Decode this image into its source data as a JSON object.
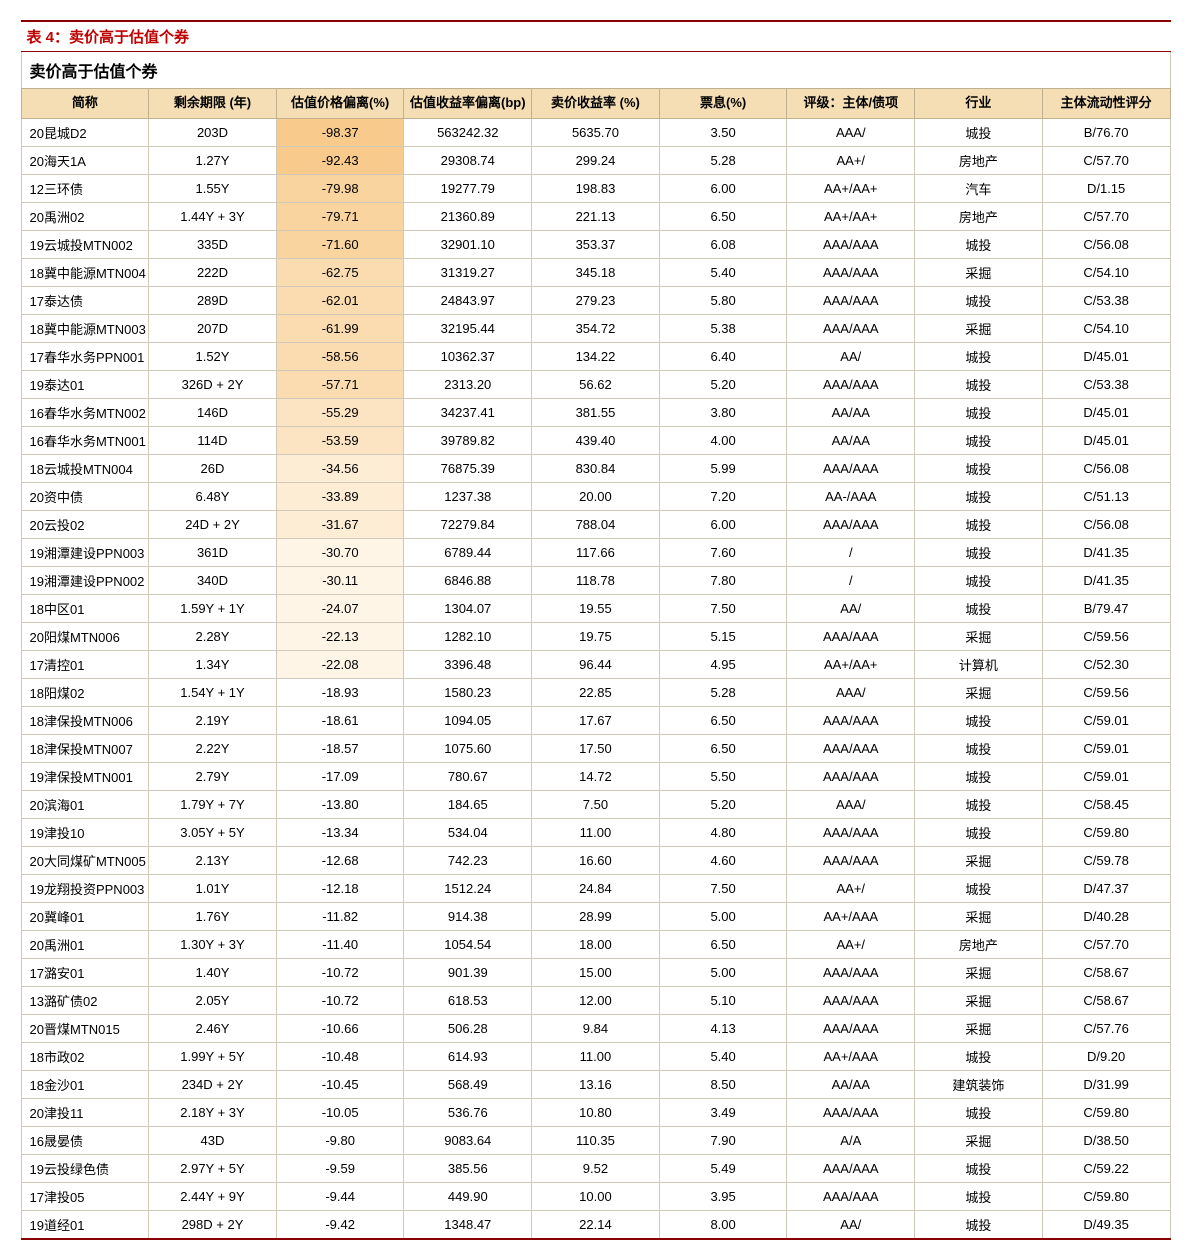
{
  "title": "表 4：卖价高于估值个券",
  "mergedHeader": "卖价高于估值个券",
  "columns": [
    "简称",
    "剩余期限 (年)",
    "估值价格偏离(%)",
    "估值收益率偏离(bp)",
    "卖价收益率 (%)",
    "票息(%)",
    "评级：主体/债项",
    "行业",
    "主体流动性评分"
  ],
  "heatmap": {
    "colors": [
      "#f8cb8c",
      "#fad49e",
      "#fbdcb0",
      "#fce4c2",
      "#fdedd4",
      "#fef5e6",
      "#ffffff"
    ],
    "column_index": 2
  },
  "rows": [
    {
      "name": "20昆城D2",
      "term": "203D",
      "dev": "-98.37",
      "devShade": 0,
      "yieldDev": "563242.32",
      "sellYield": "5635.70",
      "coupon": "3.50",
      "rating": "AAA/",
      "industry": "城投",
      "liquidity": "B/76.70"
    },
    {
      "name": "20海天1A",
      "term": "1.27Y",
      "dev": "-92.43",
      "devShade": 0,
      "yieldDev": "29308.74",
      "sellYield": "299.24",
      "coupon": "5.28",
      "rating": "AA+/",
      "industry": "房地产",
      "liquidity": "C/57.70"
    },
    {
      "name": "12三环债",
      "term": "1.55Y",
      "dev": "-79.98",
      "devShade": 1,
      "yieldDev": "19277.79",
      "sellYield": "198.83",
      "coupon": "6.00",
      "rating": "AA+/AA+",
      "industry": "汽车",
      "liquidity": "D/1.15"
    },
    {
      "name": "20禹洲02",
      "term": "1.44Y + 3Y",
      "dev": "-79.71",
      "devShade": 1,
      "yieldDev": "21360.89",
      "sellYield": "221.13",
      "coupon": "6.50",
      "rating": "AA+/AA+",
      "industry": "房地产",
      "liquidity": "C/57.70"
    },
    {
      "name": "19云城投MTN002",
      "term": "335D",
      "dev": "-71.60",
      "devShade": 1,
      "yieldDev": "32901.10",
      "sellYield": "353.37",
      "coupon": "6.08",
      "rating": "AAA/AAA",
      "industry": "城投",
      "liquidity": "C/56.08"
    },
    {
      "name": "18冀中能源MTN004",
      "term": "222D",
      "dev": "-62.75",
      "devShade": 2,
      "yieldDev": "31319.27",
      "sellYield": "345.18",
      "coupon": "5.40",
      "rating": "AAA/AAA",
      "industry": "采掘",
      "liquidity": "C/54.10"
    },
    {
      "name": "17泰达债",
      "term": "289D",
      "dev": "-62.01",
      "devShade": 2,
      "yieldDev": "24843.97",
      "sellYield": "279.23",
      "coupon": "5.80",
      "rating": "AAA/AAA",
      "industry": "城投",
      "liquidity": "C/53.38"
    },
    {
      "name": "18冀中能源MTN003",
      "term": "207D",
      "dev": "-61.99",
      "devShade": 2,
      "yieldDev": "32195.44",
      "sellYield": "354.72",
      "coupon": "5.38",
      "rating": "AAA/AAA",
      "industry": "采掘",
      "liquidity": "C/54.10"
    },
    {
      "name": "17春华水务PPN001",
      "term": "1.52Y",
      "dev": "-58.56",
      "devShade": 2,
      "yieldDev": "10362.37",
      "sellYield": "134.22",
      "coupon": "6.40",
      "rating": "AA/",
      "industry": "城投",
      "liquidity": "D/45.01"
    },
    {
      "name": "19泰达01",
      "term": "326D + 2Y",
      "dev": "-57.71",
      "devShade": 2,
      "yieldDev": "2313.20",
      "sellYield": "56.62",
      "coupon": "5.20",
      "rating": "AAA/AAA",
      "industry": "城投",
      "liquidity": "C/53.38"
    },
    {
      "name": "16春华水务MTN002",
      "term": "146D",
      "dev": "-55.29",
      "devShade": 3,
      "yieldDev": "34237.41",
      "sellYield": "381.55",
      "coupon": "3.80",
      "rating": "AA/AA",
      "industry": "城投",
      "liquidity": "D/45.01"
    },
    {
      "name": "16春华水务MTN001",
      "term": "114D",
      "dev": "-53.59",
      "devShade": 3,
      "yieldDev": "39789.82",
      "sellYield": "439.40",
      "coupon": "4.00",
      "rating": "AA/AA",
      "industry": "城投",
      "liquidity": "D/45.01"
    },
    {
      "name": "18云城投MTN004",
      "term": "26D",
      "dev": "-34.56",
      "devShade": 4,
      "yieldDev": "76875.39",
      "sellYield": "830.84",
      "coupon": "5.99",
      "rating": "AAA/AAA",
      "industry": "城投",
      "liquidity": "C/56.08"
    },
    {
      "name": "20资中债",
      "term": "6.48Y",
      "dev": "-33.89",
      "devShade": 4,
      "yieldDev": "1237.38",
      "sellYield": "20.00",
      "coupon": "7.20",
      "rating": "AA-/AAA",
      "industry": "城投",
      "liquidity": "C/51.13"
    },
    {
      "name": "20云投02",
      "term": "24D + 2Y",
      "dev": "-31.67",
      "devShade": 4,
      "yieldDev": "72279.84",
      "sellYield": "788.04",
      "coupon": "6.00",
      "rating": "AAA/AAA",
      "industry": "城投",
      "liquidity": "C/56.08"
    },
    {
      "name": "19湘潭建设PPN003",
      "term": "361D",
      "dev": "-30.70",
      "devShade": 5,
      "yieldDev": "6789.44",
      "sellYield": "117.66",
      "coupon": "7.60",
      "rating": "/",
      "industry": "城投",
      "liquidity": "D/41.35"
    },
    {
      "name": "19湘潭建设PPN002",
      "term": "340D",
      "dev": "-30.11",
      "devShade": 5,
      "yieldDev": "6846.88",
      "sellYield": "118.78",
      "coupon": "7.80",
      "rating": "/",
      "industry": "城投",
      "liquidity": "D/41.35"
    },
    {
      "name": "18中区01",
      "term": "1.59Y + 1Y",
      "dev": "-24.07",
      "devShade": 5,
      "yieldDev": "1304.07",
      "sellYield": "19.55",
      "coupon": "7.50",
      "rating": "AA/",
      "industry": "城投",
      "liquidity": "B/79.47"
    },
    {
      "name": "20阳煤MTN006",
      "term": "2.28Y",
      "dev": "-22.13",
      "devShade": 5,
      "yieldDev": "1282.10",
      "sellYield": "19.75",
      "coupon": "5.15",
      "rating": "AAA/AAA",
      "industry": "采掘",
      "liquidity": "C/59.56"
    },
    {
      "name": "17清控01",
      "term": "1.34Y",
      "dev": "-22.08",
      "devShade": 5,
      "yieldDev": "3396.48",
      "sellYield": "96.44",
      "coupon": "4.95",
      "rating": "AA+/AA+",
      "industry": "计算机",
      "liquidity": "C/52.30"
    },
    {
      "name": "18阳煤02",
      "term": "1.54Y + 1Y",
      "dev": "-18.93",
      "devShade": 6,
      "yieldDev": "1580.23",
      "sellYield": "22.85",
      "coupon": "5.28",
      "rating": "AAA/",
      "industry": "采掘",
      "liquidity": "C/59.56"
    },
    {
      "name": "18津保投MTN006",
      "term": "2.19Y",
      "dev": "-18.61",
      "devShade": 6,
      "yieldDev": "1094.05",
      "sellYield": "17.67",
      "coupon": "6.50",
      "rating": "AAA/AAA",
      "industry": "城投",
      "liquidity": "C/59.01"
    },
    {
      "name": "18津保投MTN007",
      "term": "2.22Y",
      "dev": "-18.57",
      "devShade": 6,
      "yieldDev": "1075.60",
      "sellYield": "17.50",
      "coupon": "6.50",
      "rating": "AAA/AAA",
      "industry": "城投",
      "liquidity": "C/59.01"
    },
    {
      "name": "19津保投MTN001",
      "term": "2.79Y",
      "dev": "-17.09",
      "devShade": 6,
      "yieldDev": "780.67",
      "sellYield": "14.72",
      "coupon": "5.50",
      "rating": "AAA/AAA",
      "industry": "城投",
      "liquidity": "C/59.01"
    },
    {
      "name": "20滨海01",
      "term": "1.79Y + 7Y",
      "dev": "-13.80",
      "devShade": 6,
      "yieldDev": "184.65",
      "sellYield": "7.50",
      "coupon": "5.20",
      "rating": "AAA/",
      "industry": "城投",
      "liquidity": "C/58.45"
    },
    {
      "name": "19津投10",
      "term": "3.05Y + 5Y",
      "dev": "-13.34",
      "devShade": 6,
      "yieldDev": "534.04",
      "sellYield": "11.00",
      "coupon": "4.80",
      "rating": "AAA/AAA",
      "industry": "城投",
      "liquidity": "C/59.80"
    },
    {
      "name": "20大同煤矿MTN005",
      "term": "2.13Y",
      "dev": "-12.68",
      "devShade": 6,
      "yieldDev": "742.23",
      "sellYield": "16.60",
      "coupon": "4.60",
      "rating": "AAA/AAA",
      "industry": "采掘",
      "liquidity": "C/59.78"
    },
    {
      "name": "19龙翔投资PPN003",
      "term": "1.01Y",
      "dev": "-12.18",
      "devShade": 6,
      "yieldDev": "1512.24",
      "sellYield": "24.84",
      "coupon": "7.50",
      "rating": "AA+/",
      "industry": "城投",
      "liquidity": "D/47.37"
    },
    {
      "name": "20冀峰01",
      "term": "1.76Y",
      "dev": "-11.82",
      "devShade": 6,
      "yieldDev": "914.38",
      "sellYield": "28.99",
      "coupon": "5.00",
      "rating": "AA+/AAA",
      "industry": "采掘",
      "liquidity": "D/40.28"
    },
    {
      "name": "20禹洲01",
      "term": "1.30Y + 3Y",
      "dev": "-11.40",
      "devShade": 6,
      "yieldDev": "1054.54",
      "sellYield": "18.00",
      "coupon": "6.50",
      "rating": "AA+/",
      "industry": "房地产",
      "liquidity": "C/57.70"
    },
    {
      "name": "17潞安01",
      "term": "1.40Y",
      "dev": "-10.72",
      "devShade": 6,
      "yieldDev": "901.39",
      "sellYield": "15.00",
      "coupon": "5.00",
      "rating": "AAA/AAA",
      "industry": "采掘",
      "liquidity": "C/58.67"
    },
    {
      "name": "13潞矿债02",
      "term": "2.05Y",
      "dev": "-10.72",
      "devShade": 6,
      "yieldDev": "618.53",
      "sellYield": "12.00",
      "coupon": "5.10",
      "rating": "AAA/AAA",
      "industry": "采掘",
      "liquidity": "C/58.67"
    },
    {
      "name": "20晋煤MTN015",
      "term": "2.46Y",
      "dev": "-10.66",
      "devShade": 6,
      "yieldDev": "506.28",
      "sellYield": "9.84",
      "coupon": "4.13",
      "rating": "AAA/AAA",
      "industry": "采掘",
      "liquidity": "C/57.76"
    },
    {
      "name": "18市政02",
      "term": "1.99Y + 5Y",
      "dev": "-10.48",
      "devShade": 6,
      "yieldDev": "614.93",
      "sellYield": "11.00",
      "coupon": "5.40",
      "rating": "AA+/AAA",
      "industry": "城投",
      "liquidity": "D/9.20"
    },
    {
      "name": "18金沙01",
      "term": "234D + 2Y",
      "dev": "-10.45",
      "devShade": 6,
      "yieldDev": "568.49",
      "sellYield": "13.16",
      "coupon": "8.50",
      "rating": "AA/AA",
      "industry": "建筑装饰",
      "liquidity": "D/31.99"
    },
    {
      "name": "20津投11",
      "term": "2.18Y + 3Y",
      "dev": "-10.05",
      "devShade": 6,
      "yieldDev": "536.76",
      "sellYield": "10.80",
      "coupon": "3.49",
      "rating": "AAA/AAA",
      "industry": "城投",
      "liquidity": "C/59.80"
    },
    {
      "name": "16晟晏债",
      "term": "43D",
      "dev": "-9.80",
      "devShade": 6,
      "yieldDev": "9083.64",
      "sellYield": "110.35",
      "coupon": "7.90",
      "rating": "A/A",
      "industry": "采掘",
      "liquidity": "D/38.50"
    },
    {
      "name": "19云投绿色债",
      "term": "2.97Y + 5Y",
      "dev": "-9.59",
      "devShade": 6,
      "yieldDev": "385.56",
      "sellYield": "9.52",
      "coupon": "5.49",
      "rating": "AAA/AAA",
      "industry": "城投",
      "liquidity": "C/59.22"
    },
    {
      "name": "17津投05",
      "term": "2.44Y + 9Y",
      "dev": "-9.44",
      "devShade": 6,
      "yieldDev": "449.90",
      "sellYield": "10.00",
      "coupon": "3.95",
      "rating": "AAA/AAA",
      "industry": "城投",
      "liquidity": "C/59.80"
    },
    {
      "name": "19道经01",
      "term": "298D + 2Y",
      "dev": "-9.42",
      "devShade": 6,
      "yieldDev": "1348.47",
      "sellYield": "22.14",
      "coupon": "8.00",
      "rating": "AA/",
      "industry": "城投",
      "liquidity": "D/49.35"
    }
  ]
}
